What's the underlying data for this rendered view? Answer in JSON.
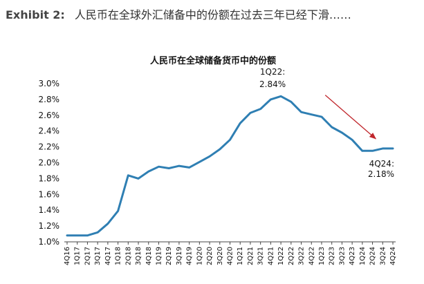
{
  "exhibit": {
    "label": "Exhibit 2:",
    "headline": "人民币在全球外汇储备中的份额在过去三年已经下滑……"
  },
  "chart_data": {
    "type": "line",
    "title": "人民币在全球储备货币中的份额",
    "xlabel": "",
    "ylabel": "",
    "ylim": [
      1.0,
      3.0
    ],
    "yticks": [
      "1.0%",
      "1.2%",
      "1.4%",
      "1.6%",
      "1.8%",
      "2.0%",
      "2.2%",
      "2.4%",
      "2.6%",
      "2.8%",
      "3.0%"
    ],
    "categories": [
      "4Q16",
      "1Q17",
      "2Q17",
      "3Q17",
      "4Q17",
      "1Q18",
      "2Q18",
      "3Q18",
      "4Q18",
      "1Q19",
      "2Q19",
      "3Q19",
      "4Q19",
      "1Q20",
      "2Q20",
      "3Q20",
      "4Q20",
      "1Q21",
      "2Q21",
      "3Q21",
      "4Q21",
      "1Q22",
      "2Q22",
      "3Q22",
      "4Q22",
      "1Q23",
      "2Q23",
      "3Q23",
      "4Q23",
      "1Q24",
      "2Q24",
      "3Q24",
      "4Q24"
    ],
    "series": [
      {
        "name": "",
        "color": "#2f7fb3",
        "values": [
          1.08,
          1.08,
          1.08,
          1.12,
          1.23,
          1.39,
          1.84,
          1.8,
          1.89,
          1.95,
          1.93,
          1.96,
          1.94,
          2.01,
          2.08,
          2.17,
          2.29,
          2.5,
          2.63,
          2.68,
          2.8,
          2.84,
          2.77,
          2.64,
          2.61,
          2.58,
          2.45,
          2.38,
          2.29,
          2.15,
          2.15,
          2.18,
          2.18
        ]
      }
    ],
    "grid": false,
    "annotations": [
      {
        "point": "1Q22",
        "line1": "1Q22:",
        "line2": "2.84%"
      },
      {
        "point": "4Q24",
        "line1": "4Q24:",
        "line2": "2.18%"
      }
    ],
    "trend_arrow": {
      "from": "4Q22",
      "to": "3Q24",
      "color": "#c0262c"
    }
  }
}
